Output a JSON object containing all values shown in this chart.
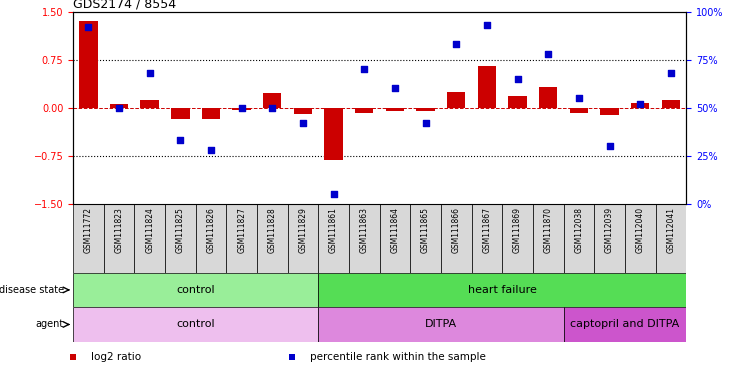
{
  "title": "GDS2174 / 8554",
  "samples": [
    "GSM111772",
    "GSM111823",
    "GSM111824",
    "GSM111825",
    "GSM111826",
    "GSM111827",
    "GSM111828",
    "GSM111829",
    "GSM111861",
    "GSM111863",
    "GSM111864",
    "GSM111865",
    "GSM111866",
    "GSM111867",
    "GSM111869",
    "GSM111870",
    "GSM112038",
    "GSM112039",
    "GSM112040",
    "GSM112041"
  ],
  "log2_ratio": [
    1.35,
    0.05,
    0.12,
    -0.18,
    -0.18,
    -0.04,
    0.22,
    -0.1,
    -0.82,
    -0.08,
    -0.05,
    -0.05,
    0.25,
    0.65,
    0.18,
    0.32,
    -0.08,
    -0.12,
    0.07,
    0.12
  ],
  "percentile": [
    92,
    50,
    68,
    33,
    28,
    50,
    50,
    42,
    5,
    70,
    60,
    42,
    83,
    93,
    65,
    78,
    55,
    30,
    52,
    68
  ],
  "ylim": [
    -1.5,
    1.5
  ],
  "yticks_left": [
    -1.5,
    -0.75,
    0,
    0.75,
    1.5
  ],
  "yticks_right": [
    0,
    25,
    50,
    75,
    100
  ],
  "bar_color": "#cc0000",
  "dot_color": "#0000cc",
  "zero_line_color": "#cc0000",
  "dotted_line_color": "#000000",
  "disease_state_groups": [
    {
      "label": "control",
      "start": 0,
      "end": 7,
      "color": "#99ee99"
    },
    {
      "label": "heart failure",
      "start": 8,
      "end": 19,
      "color": "#55dd55"
    }
  ],
  "agent_groups": [
    {
      "label": "control",
      "start": 0,
      "end": 7,
      "color": "#eebfee"
    },
    {
      "label": "DITPA",
      "start": 8,
      "end": 15,
      "color": "#dd88dd"
    },
    {
      "label": "captopril and DITPA",
      "start": 16,
      "end": 19,
      "color": "#cc55cc"
    }
  ],
  "legend_items": [
    {
      "label": "log2 ratio",
      "color": "#cc0000"
    },
    {
      "label": "percentile rank within the sample",
      "color": "#0000cc"
    }
  ]
}
